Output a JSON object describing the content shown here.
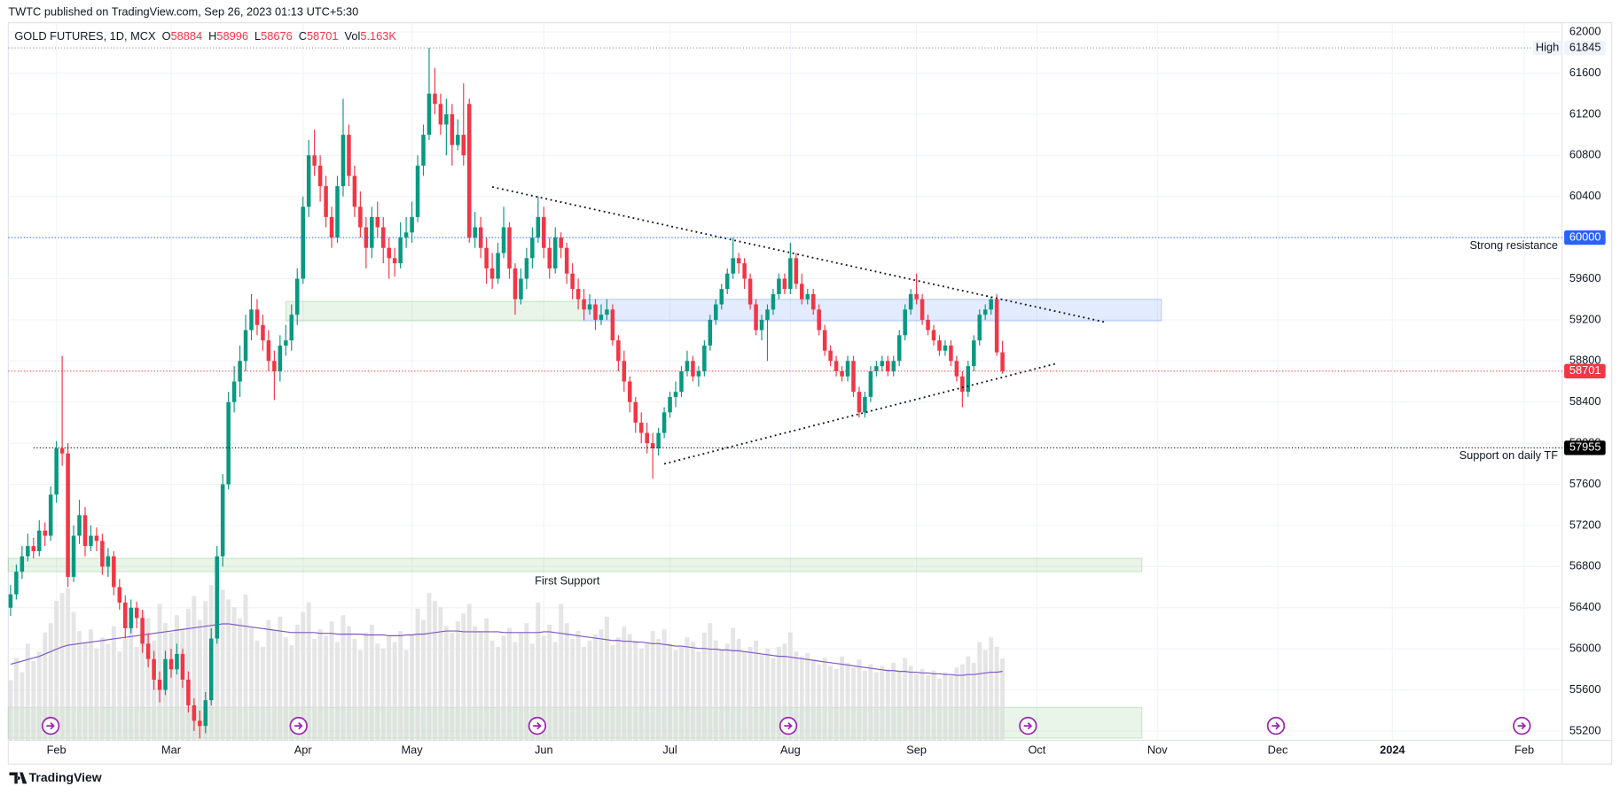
{
  "header": "TWTC published on TradingView.com, Sep 26, 2023 01:13 UTC+5:30",
  "footer": "TradingView",
  "chart_data": {
    "type": "candlestick",
    "legend": {
      "symbol": "GOLD FUTURES, 1D, MCX",
      "open": "O",
      "high": "H",
      "low": "L",
      "close": "C",
      "volume": "Vol",
      "volume_value_label": "5.163K"
    },
    "up_color": "#089981",
    "down_color": "#f23645",
    "volume_color": "#dcdcdc",
    "volume_ma_color": "#7e57c2",
    "xlim": [
      -0.4,
      270.6
    ],
    "xticks": [
      {
        "value": 8,
        "label": "Feb"
      },
      {
        "value": 28,
        "label": "Mar"
      },
      {
        "value": 51,
        "label": "Apr"
      },
      {
        "value": 70,
        "label": "May"
      },
      {
        "value": 93,
        "label": "Jun"
      },
      {
        "value": 115,
        "label": "Jul"
      },
      {
        "value": 136,
        "label": "Aug"
      },
      {
        "value": 158,
        "label": "Sep"
      },
      {
        "value": 179,
        "label": "Oct"
      },
      {
        "value": 200,
        "label": "Nov"
      },
      {
        "value": 221,
        "label": "Dec"
      },
      {
        "value": 241,
        "label": "2024"
      },
      {
        "value": 264,
        "label": "Feb"
      }
    ],
    "ylim": [
      55110,
      62090
    ],
    "yticks": [
      55200,
      55600,
      56000,
      56400,
      56800,
      57200,
      57600,
      58000,
      58400,
      58800,
      59200,
      59600,
      60000,
      60400,
      60800,
      61200,
      61600,
      62000
    ],
    "grid": true,
    "open": [
      56400,
      56530,
      56750,
      56900,
      57000,
      56950,
      57150,
      57100,
      57500,
      57950,
      57900,
      56700,
      57100,
      57300,
      57000,
      57100,
      57050,
      56800,
      56900,
      56600,
      56450,
      56200,
      56400,
      56300,
      56050,
      55900,
      55700,
      55600,
      55900,
      55800,
      55950,
      55700,
      55450,
      55300,
      55250,
      55500,
      56100,
      56900,
      57600,
      58400,
      58600,
      58800,
      59100,
      59300,
      59150,
      59000,
      58800,
      58700,
      58950,
      59000,
      59250,
      59600,
      60300,
      60800,
      60700,
      60500,
      60200,
      60000,
      60500,
      61000,
      60600,
      60300,
      60100,
      59900,
      60200,
      60100,
      59900,
      59800,
      59750,
      60000,
      60050,
      60200,
      60700,
      61000,
      61400,
      61300,
      61100,
      61200,
      60900,
      61000,
      61300,
      60000,
      60100,
      59900,
      59700,
      59600,
      59850,
      60100,
      59700,
      59400,
      59600,
      59800,
      60000,
      60200,
      59900,
      59700,
      60000,
      59900,
      59650,
      59500,
      59400,
      59300,
      59350,
      59200,
      59250,
      59300,
      59000,
      58800,
      58600,
      58400,
      58200,
      58100,
      58000,
      57950,
      58100,
      58300,
      58450,
      58500,
      58700,
      58800,
      58650,
      58700,
      58950,
      59200,
      59350,
      59500,
      59650,
      59800,
      59750,
      59600,
      59350,
      59100,
      59200,
      59300,
      59450,
      59600,
      59500,
      59800,
      59550,
      59400,
      59450,
      59300,
      59100,
      58900,
      58800,
      58700,
      58650,
      58800,
      58500,
      58300,
      58450,
      58700,
      58750,
      58800,
      58700,
      58800,
      59050,
      59300,
      59450,
      59400,
      59200,
      59100,
      59000,
      58900,
      58950,
      58800,
      58650,
      58500,
      58750,
      59000,
      59250,
      59300,
      59400,
      58884
    ],
    "high": [
      56620,
      56820,
      57000,
      57120,
      57080,
      57250,
      57230,
      57580,
      58020,
      58850,
      58000,
      57200,
      57450,
      57380,
      57200,
      57180,
      57120,
      56980,
      56950,
      56680,
      56520,
      56480,
      56460,
      56380,
      56150,
      55980,
      55780,
      55980,
      56000,
      56050,
      56000,
      55780,
      55520,
      55400,
      55580,
      56200,
      57000,
      57700,
      58500,
      58750,
      58950,
      59250,
      59450,
      59400,
      59250,
      59100,
      58900,
      59050,
      59150,
      59350,
      59700,
      60400,
      60950,
      61050,
      60800,
      60600,
      60300,
      60600,
      61350,
      61100,
      60700,
      60450,
      60200,
      60300,
      60350,
      60200,
      60000,
      59900,
      60150,
      60200,
      60350,
      60800,
      61100,
      61845,
      61650,
      61400,
      61350,
      61300,
      61150,
      61500,
      61350,
      60250,
      60200,
      60000,
      59850,
      59950,
      60300,
      60150,
      59750,
      59700,
      59900,
      60100,
      60400,
      60300,
      60000,
      60100,
      60050,
      59950,
      59750,
      59600,
      59500,
      59450,
      59400,
      59350,
      59400,
      59350,
      59050,
      58900,
      58650,
      58450,
      58300,
      58200,
      58100,
      58150,
      58350,
      58500,
      58600,
      58750,
      58900,
      58850,
      58750,
      59000,
      59250,
      59400,
      59550,
      59700,
      60000,
      59850,
      59800,
      59650,
      59400,
      59250,
      59350,
      59500,
      59650,
      59650,
      59950,
      59850,
      59650,
      59500,
      59500,
      59350,
      59150,
      58950,
      58850,
      58750,
      58850,
      58850,
      58550,
      58500,
      58750,
      58800,
      58850,
      58850,
      58850,
      59100,
      59350,
      59500,
      59650,
      59450,
      59250,
      59150,
      59050,
      59000,
      59000,
      58850,
      58700,
      58800,
      59050,
      59300,
      59350,
      59420,
      59450,
      58996
    ],
    "low": [
      56320,
      56480,
      56680,
      56850,
      56880,
      56900,
      57000,
      57050,
      57420,
      57780,
      56600,
      56650,
      57020,
      56900,
      56950,
      56950,
      56720,
      56700,
      56520,
      56380,
      56100,
      56150,
      56200,
      55960,
      55820,
      55600,
      55480,
      55550,
      55720,
      55750,
      55620,
      55380,
      55200,
      55130,
      55180,
      55450,
      56050,
      56800,
      57550,
      58300,
      58450,
      58700,
      59000,
      59050,
      58900,
      58700,
      58420,
      58600,
      58850,
      58900,
      59150,
      59550,
      60200,
      60600,
      60350,
      60100,
      59900,
      59950,
      60400,
      60500,
      60200,
      60000,
      59700,
      59800,
      60000,
      59750,
      59600,
      59620,
      59700,
      59900,
      59950,
      60150,
      60600,
      60950,
      61200,
      61000,
      60800,
      60700,
      60850,
      60700,
      59950,
      59900,
      59800,
      59550,
      59500,
      59550,
      59800,
      59600,
      59250,
      59350,
      59500,
      59700,
      59950,
      59800,
      59600,
      59650,
      59800,
      59550,
      59400,
      59300,
      59200,
      59250,
      59100,
      59150,
      59200,
      58950,
      58700,
      58500,
      58300,
      58100,
      58000,
      57900,
      57655,
      57880,
      58050,
      58250,
      58350,
      58450,
      58650,
      58600,
      58550,
      58650,
      58900,
      59150,
      59300,
      59450,
      59600,
      59650,
      59500,
      59300,
      59050,
      59000,
      58800,
      59250,
      59400,
      59450,
      59450,
      59500,
      59350,
      59350,
      59250,
      59050,
      58850,
      58750,
      58650,
      58600,
      58600,
      58450,
      58250,
      58250,
      58400,
      58650,
      58700,
      58650,
      58650,
      58750,
      59000,
      59250,
      59350,
      59150,
      59050,
      58950,
      58850,
      58850,
      58750,
      58600,
      58350,
      58450,
      58700,
      58950,
      59200,
      59250,
      58850,
      58676
    ],
    "close": [
      56530,
      56750,
      56900,
      57000,
      56950,
      57150,
      57100,
      57500,
      57950,
      57900,
      56700,
      57100,
      57300,
      57000,
      57100,
      57050,
      56800,
      56900,
      56600,
      56450,
      56200,
      56400,
      56300,
      56050,
      55900,
      55700,
      55600,
      55900,
      55800,
      55950,
      55700,
      55450,
      55300,
      55250,
      55500,
      56100,
      56900,
      57600,
      58400,
      58600,
      58800,
      59100,
      59300,
      59150,
      59000,
      58800,
      58700,
      58950,
      59000,
      59250,
      59600,
      60300,
      60800,
      60700,
      60500,
      60200,
      60000,
      60500,
      61000,
      60600,
      60300,
      60100,
      59900,
      60200,
      60100,
      59900,
      59800,
      59750,
      60000,
      60050,
      60200,
      60700,
      61000,
      61400,
      61300,
      61100,
      61200,
      60900,
      61000,
      60800,
      60000,
      60100,
      59900,
      59700,
      59600,
      59850,
      60100,
      59700,
      59400,
      59600,
      59800,
      60000,
      60200,
      59900,
      59700,
      60000,
      59900,
      59650,
      59500,
      59400,
      59300,
      59350,
      59200,
      59250,
      59300,
      59000,
      58800,
      58600,
      58400,
      58200,
      58100,
      58000,
      57950,
      58100,
      58300,
      58450,
      58500,
      58700,
      58800,
      58650,
      58700,
      58950,
      59200,
      59350,
      59500,
      59650,
      59800,
      59750,
      59600,
      59350,
      59100,
      59200,
      59300,
      59450,
      59600,
      59500,
      59800,
      59550,
      59400,
      59450,
      59300,
      59100,
      58900,
      58800,
      58700,
      58650,
      58800,
      58500,
      58300,
      58450,
      58700,
      58750,
      58800,
      58700,
      58800,
      59050,
      59300,
      59450,
      59400,
      59200,
      59100,
      59000,
      58900,
      58950,
      58800,
      58650,
      58500,
      58750,
      59000,
      59250,
      59300,
      59400,
      58884,
      58701
    ],
    "volume": [
      3800,
      5200,
      4300,
      6100,
      5000,
      5600,
      6800,
      7400,
      8800,
      9300,
      9600,
      8100,
      6900,
      6200,
      7000,
      5800,
      6500,
      6100,
      7200,
      5600,
      6400,
      7100,
      5900,
      8200,
      7700,
      6300,
      8600,
      7400,
      6800,
      7900,
      7000,
      8300,
      9100,
      7600,
      8800,
      9800,
      10100,
      9500,
      8900,
      8400,
      7700,
      9200,
      7100,
      6300,
      5900,
      7600,
      6900,
      7800,
      6500,
      6000,
      7300,
      8100,
      8700,
      6400,
      7000,
      6600,
      7500,
      6200,
      7900,
      7200,
      6400,
      5700,
      6800,
      7300,
      6100,
      5800,
      6600,
      6200,
      6900,
      5700,
      6700,
      8300,
      7600,
      9300,
      8800,
      8400,
      7200,
      6800,
      7500,
      8000,
      8600,
      7200,
      6900,
      7700,
      6300,
      5900,
      6600,
      7100,
      6200,
      6800,
      7400,
      6100,
      8700,
      6600,
      7300,
      6200,
      8600,
      7400,
      6400,
      6900,
      5900,
      6300,
      6700,
      7000,
      7800,
      6000,
      6500,
      7200,
      6700,
      6300,
      5800,
      6100,
      6900,
      6400,
      7000,
      6100,
      5700,
      5900,
      6500,
      6200,
      5600,
      6800,
      7400,
      6300,
      5700,
      6100,
      7100,
      6400,
      5600,
      5900,
      6300,
      5400,
      5800,
      5200,
      5900,
      6100,
      6800,
      5600,
      5300,
      5500,
      5100,
      4800,
      5200,
      4700,
      4500,
      5300,
      4900,
      4600,
      5100,
      4400,
      4800,
      4300,
      4700,
      4500,
      4900,
      4400,
      5200,
      4700,
      4200,
      4500,
      4100,
      4400,
      3900,
      4300,
      4100,
      4600,
      4800,
      5300,
      4900,
      6200,
      5700,
      6500,
      5900,
      5163
    ],
    "volume_ma": [
      4800,
      4900,
      5000,
      5100,
      5200,
      5300,
      5450,
      5600,
      5750,
      5900,
      6000,
      6050,
      6100,
      6150,
      6200,
      6250,
      6300,
      6350,
      6400,
      6450,
      6500,
      6550,
      6600,
      6650,
      6700,
      6750,
      6800,
      6850,
      6900,
      6950,
      7000,
      7050,
      7100,
      7150,
      7200,
      7250,
      7300,
      7350,
      7350,
      7300,
      7250,
      7200,
      7150,
      7100,
      7050,
      7000,
      6950,
      6900,
      6850,
      6800,
      6800,
      6800,
      6800,
      6800,
      6750,
      6750,
      6750,
      6700,
      6700,
      6700,
      6700,
      6700,
      6650,
      6650,
      6650,
      6650,
      6600,
      6600,
      6600,
      6650,
      6650,
      6700,
      6700,
      6750,
      6800,
      6850,
      6900,
      6900,
      6900,
      6850,
      6850,
      6850,
      6850,
      6850,
      6850,
      6850,
      6800,
      6800,
      6800,
      6800,
      6800,
      6800,
      6800,
      6850,
      6850,
      6800,
      6750,
      6700,
      6650,
      6600,
      6550,
      6500,
      6450,
      6400,
      6350,
      6300,
      6300,
      6250,
      6250,
      6200,
      6200,
      6150,
      6100,
      6100,
      6050,
      6000,
      5950,
      5950,
      5900,
      5850,
      5800,
      5800,
      5750,
      5750,
      5700,
      5700,
      5650,
      5650,
      5600,
      5550,
      5500,
      5450,
      5400,
      5350,
      5300,
      5300,
      5250,
      5200,
      5150,
      5100,
      5050,
      5000,
      4950,
      4900,
      4850,
      4800,
      4750,
      4700,
      4650,
      4600,
      4550,
      4500,
      4450,
      4400,
      4400,
      4350,
      4350,
      4300,
      4300,
      4250,
      4250,
      4200,
      4200,
      4150,
      4150,
      4100,
      4100,
      4150,
      4150,
      4200,
      4250,
      4300,
      4300,
      4350
    ],
    "levels": [
      {
        "price": 61845,
        "label": "High",
        "color": "#9598a1",
        "start": -0.4
      },
      {
        "price": 60000,
        "label": "Strong resistance",
        "color": "#2962ff",
        "start": -0.4
      },
      {
        "price": 57955,
        "label": "Support on daily TF",
        "color": "#000000",
        "start": 4
      }
    ],
    "zones": [
      {
        "start": 48,
        "end": 100,
        "top": 59380,
        "bottom": 59190,
        "color": "#4caf50"
      },
      {
        "start": 100,
        "end": 200.7,
        "top": 59400,
        "bottom": 59190,
        "color": "#2962ff"
      },
      {
        "start": -0.4,
        "end": 197.3,
        "top": 56880,
        "bottom": 56750,
        "color": "#4caf50"
      },
      {
        "start": -0.4,
        "end": 197.3,
        "top": 55430,
        "bottom": 55130,
        "color": "#4caf50"
      }
    ],
    "trend_lines": [
      {
        "x": [
          84,
          191
        ],
        "y": [
          60493,
          59176
        ]
      },
      {
        "x": [
          114,
          182.3
        ],
        "y": [
          57799,
          58774
        ]
      }
    ],
    "annotations": [
      {
        "text": "First Support",
        "x": 97.1,
        "price": 56654
      }
    ]
  }
}
